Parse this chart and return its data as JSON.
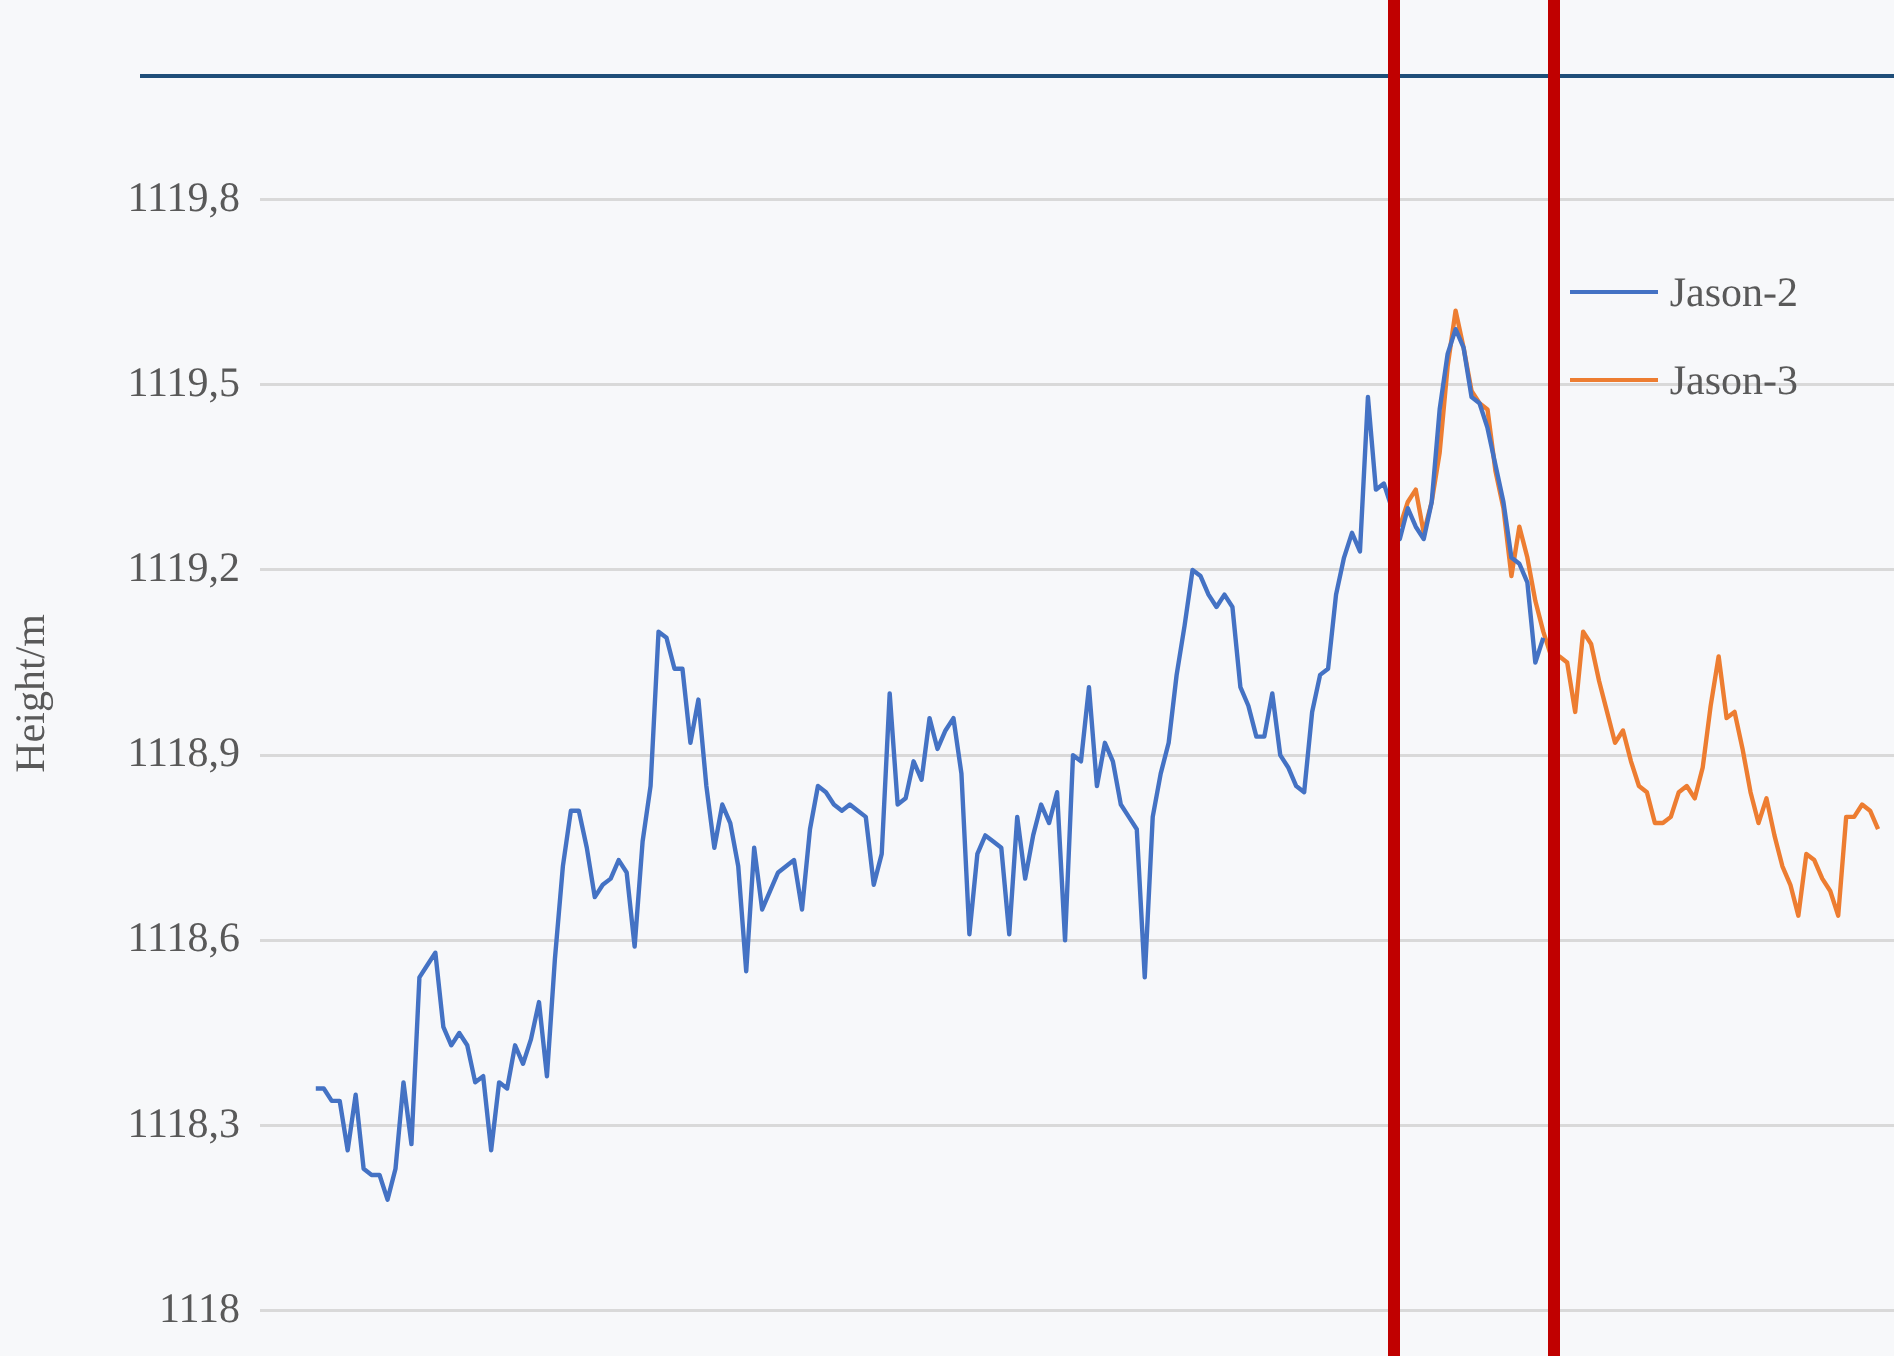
{
  "chart_data": {
    "type": "line",
    "ylabel": "Height/m",
    "categories": [
      null,
      null,
      null,
      null,
      null,
      null,
      null,
      null,
      null,
      null,
      null,
      null,
      null,
      null,
      null,
      null,
      null,
      null,
      null,
      null,
      null,
      null,
      null,
      null,
      null,
      null,
      null,
      null,
      null,
      null,
      null,
      null,
      null,
      null,
      null,
      null,
      null,
      null,
      null,
      null,
      null,
      null,
      null,
      null,
      null,
      null,
      null,
      null,
      null,
      null,
      null,
      null,
      null,
      null,
      null,
      null,
      null,
      null,
      null,
      null,
      null,
      null,
      null,
      null,
      null,
      null,
      null,
      null,
      null,
      null,
      null,
      null,
      null,
      null,
      null,
      null,
      null,
      null,
      null,
      null,
      null,
      null,
      null,
      null,
      null,
      null,
      null,
      null,
      null,
      null,
      null,
      null,
      null,
      null,
      null,
      null,
      null,
      null,
      null,
      null,
      null,
      null,
      null,
      null,
      null,
      null,
      null,
      null,
      null,
      null,
      null,
      null,
      null,
      null,
      null,
      null,
      null,
      null,
      null,
      null,
      null,
      null,
      null,
      null,
      null,
      null,
      null,
      null,
      null,
      null,
      null,
      null,
      null,
      null,
      null,
      null,
      null,
      null,
      null,
      null,
      null,
      null,
      null,
      null,
      null,
      null,
      null,
      null,
      null,
      null,
      null,
      null,
      null,
      null,
      null,
      null,
      null,
      null,
      null,
      null,
      null,
      null,
      null,
      null,
      null,
      null,
      null,
      null,
      null,
      null,
      null,
      null,
      null,
      null,
      null,
      null,
      null,
      null,
      null,
      null,
      null,
      null,
      null,
      null,
      null,
      null,
      null,
      null,
      null,
      null,
      null,
      null,
      null,
      null,
      null,
      null,
      null,
      null,
      null,
      null,
      null,
      null,
      null,
      null,
      null,
      null
    ],
    "ylim": [
      1118,
      1120
    ],
    "yticks": [
      1118,
      {
        "value": 1118.3,
        "label": "1118,3"
      },
      {
        "value": 1118.6,
        "label": "1118,6"
      },
      {
        "value": 1118.9,
        "label": "1118,9"
      },
      {
        "value": 1119.2,
        "label": "1119,2"
      },
      {
        "value": 1119.5,
        "label": "1119,5"
      },
      {
        "value": 1119.8,
        "label": "1119,8"
      }
    ],
    "grid": "y",
    "legend": "top right",
    "tick_labels": "y",
    "marker": "none",
    "line_style": "solid",
    "series": [
      {
        "name": "Jason-2",
        "color": "#4472c4",
        "values": [
          null,
          null,
          null,
          null,
          null,
          null,
          null,
          1118.36,
          1118.36,
          1118.34,
          1118.34,
          1118.26,
          1118.35,
          1118.23,
          1118.22,
          1118.22,
          1118.18,
          1118.23,
          1118.37,
          1118.27,
          1118.54,
          1118.56,
          1118.58,
          1118.46,
          1118.43,
          1118.45,
          1118.43,
          1118.37,
          1118.38,
          1118.26,
          1118.37,
          1118.36,
          1118.43,
          1118.4,
          1118.44,
          1118.5,
          1118.38,
          1118.57,
          1118.72,
          1118.81,
          1118.81,
          1118.75,
          1118.67,
          1118.69,
          1118.7,
          1118.73,
          1118.71,
          1118.59,
          1118.76,
          1118.85,
          1119.1,
          1119.09,
          1119.04,
          1119.04,
          1118.92,
          1118.99,
          1118.85,
          1118.75,
          1118.82,
          1118.79,
          1118.72,
          1118.55,
          1118.75,
          1118.65,
          1118.68,
          1118.71,
          1118.72,
          1118.73,
          1118.65,
          1118.78,
          1118.85,
          1118.84,
          1118.82,
          1118.81,
          1118.82,
          1118.81,
          1118.8,
          1118.69,
          1118.74,
          1119.0,
          1118.82,
          1118.83,
          1118.89,
          1118.86,
          1118.96,
          1118.91,
          1118.94,
          1118.96,
          1118.87,
          1118.61,
          1118.74,
          1118.77,
          1118.76,
          1118.75,
          1118.61,
          1118.8,
          1118.7,
          1118.77,
          1118.82,
          1118.79,
          1118.84,
          1118.6,
          1118.9,
          1118.89,
          1119.01,
          1118.85,
          1118.92,
          1118.89,
          1118.82,
          1118.8,
          1118.78,
          1118.54,
          1118.8,
          1118.87,
          1118.92,
          1119.03,
          1119.11,
          1119.2,
          1119.19,
          1119.16,
          1119.14,
          1119.16,
          1119.14,
          1119.01,
          1118.98,
          1118.93,
          1118.93,
          1119.0,
          1118.9,
          1118.88,
          1118.85,
          1118.84,
          1118.97,
          1119.03,
          1119.04,
          1119.16,
          1119.22,
          1119.26,
          1119.23,
          1119.48,
          1119.33,
          1119.34,
          1119.3,
          1119.25,
          1119.3,
          1119.27,
          1119.25,
          1119.31,
          1119.46,
          1119.55,
          1119.59,
          1119.56,
          1119.48,
          1119.47,
          1119.43,
          1119.37,
          1119.31,
          1119.22,
          1119.21,
          1119.18,
          1119.05,
          1119.09,
          null,
          null,
          null,
          null,
          null,
          null,
          null,
          null,
          null,
          null,
          null,
          null,
          null,
          null,
          null,
          null,
          null,
          null,
          null,
          null,
          null,
          null,
          null,
          null,
          null,
          null,
          null,
          null,
          null,
          null,
          null,
          null,
          null,
          null,
          null,
          null,
          null,
          null,
          null,
          null,
          null,
          null,
          null,
          null
        ]
      },
      {
        "name": "Jason-3",
        "color": "#ed7d31",
        "values": [
          null,
          null,
          null,
          null,
          null,
          null,
          null,
          null,
          null,
          null,
          null,
          null,
          null,
          null,
          null,
          null,
          null,
          null,
          null,
          null,
          null,
          null,
          null,
          null,
          null,
          null,
          null,
          null,
          null,
          null,
          null,
          null,
          null,
          null,
          null,
          null,
          null,
          null,
          null,
          null,
          null,
          null,
          null,
          null,
          null,
          null,
          null,
          null,
          null,
          null,
          null,
          null,
          null,
          null,
          null,
          null,
          null,
          null,
          null,
          null,
          null,
          null,
          null,
          null,
          null,
          null,
          null,
          null,
          null,
          null,
          null,
          null,
          null,
          null,
          null,
          null,
          null,
          null,
          null,
          null,
          null,
          null,
          null,
          null,
          null,
          null,
          null,
          null,
          null,
          null,
          null,
          null,
          null,
          null,
          null,
          null,
          null,
          null,
          null,
          null,
          null,
          null,
          null,
          null,
          null,
          null,
          null,
          null,
          null,
          null,
          null,
          null,
          null,
          null,
          null,
          null,
          null,
          null,
          null,
          null,
          null,
          null,
          null,
          null,
          null,
          null,
          null,
          null,
          null,
          null,
          null,
          null,
          null,
          null,
          null,
          null,
          null,
          null,
          null,
          null,
          null,
          null,
          null,
          1119.27,
          1119.31,
          1119.33,
          1119.26,
          1119.31,
          1119.39,
          1119.53,
          1119.62,
          1119.56,
          1119.49,
          1119.47,
          1119.46,
          1119.36,
          1119.3,
          1119.19,
          1119.27,
          1119.22,
          1119.15,
          1119.1,
          1119.06,
          1119.06,
          1119.05,
          1118.97,
          1119.1,
          1119.08,
          1119.02,
          1118.97,
          1118.92,
          1118.94,
          1118.89,
          1118.85,
          1118.84,
          1118.79,
          1118.79,
          1118.8,
          1118.84,
          1118.85,
          1118.83,
          1118.88,
          1118.98,
          1119.06,
          1118.96,
          1118.97,
          1118.91,
          1118.84,
          1118.79,
          1118.83,
          1118.77,
          1118.72,
          1118.69,
          1118.64,
          1118.74,
          1118.73,
          1118.7,
          1118.68,
          1118.64,
          1118.8,
          1118.8,
          1118.82,
          1118.81,
          1118.78,
          null,
          null
        ]
      }
    ]
  }
}
